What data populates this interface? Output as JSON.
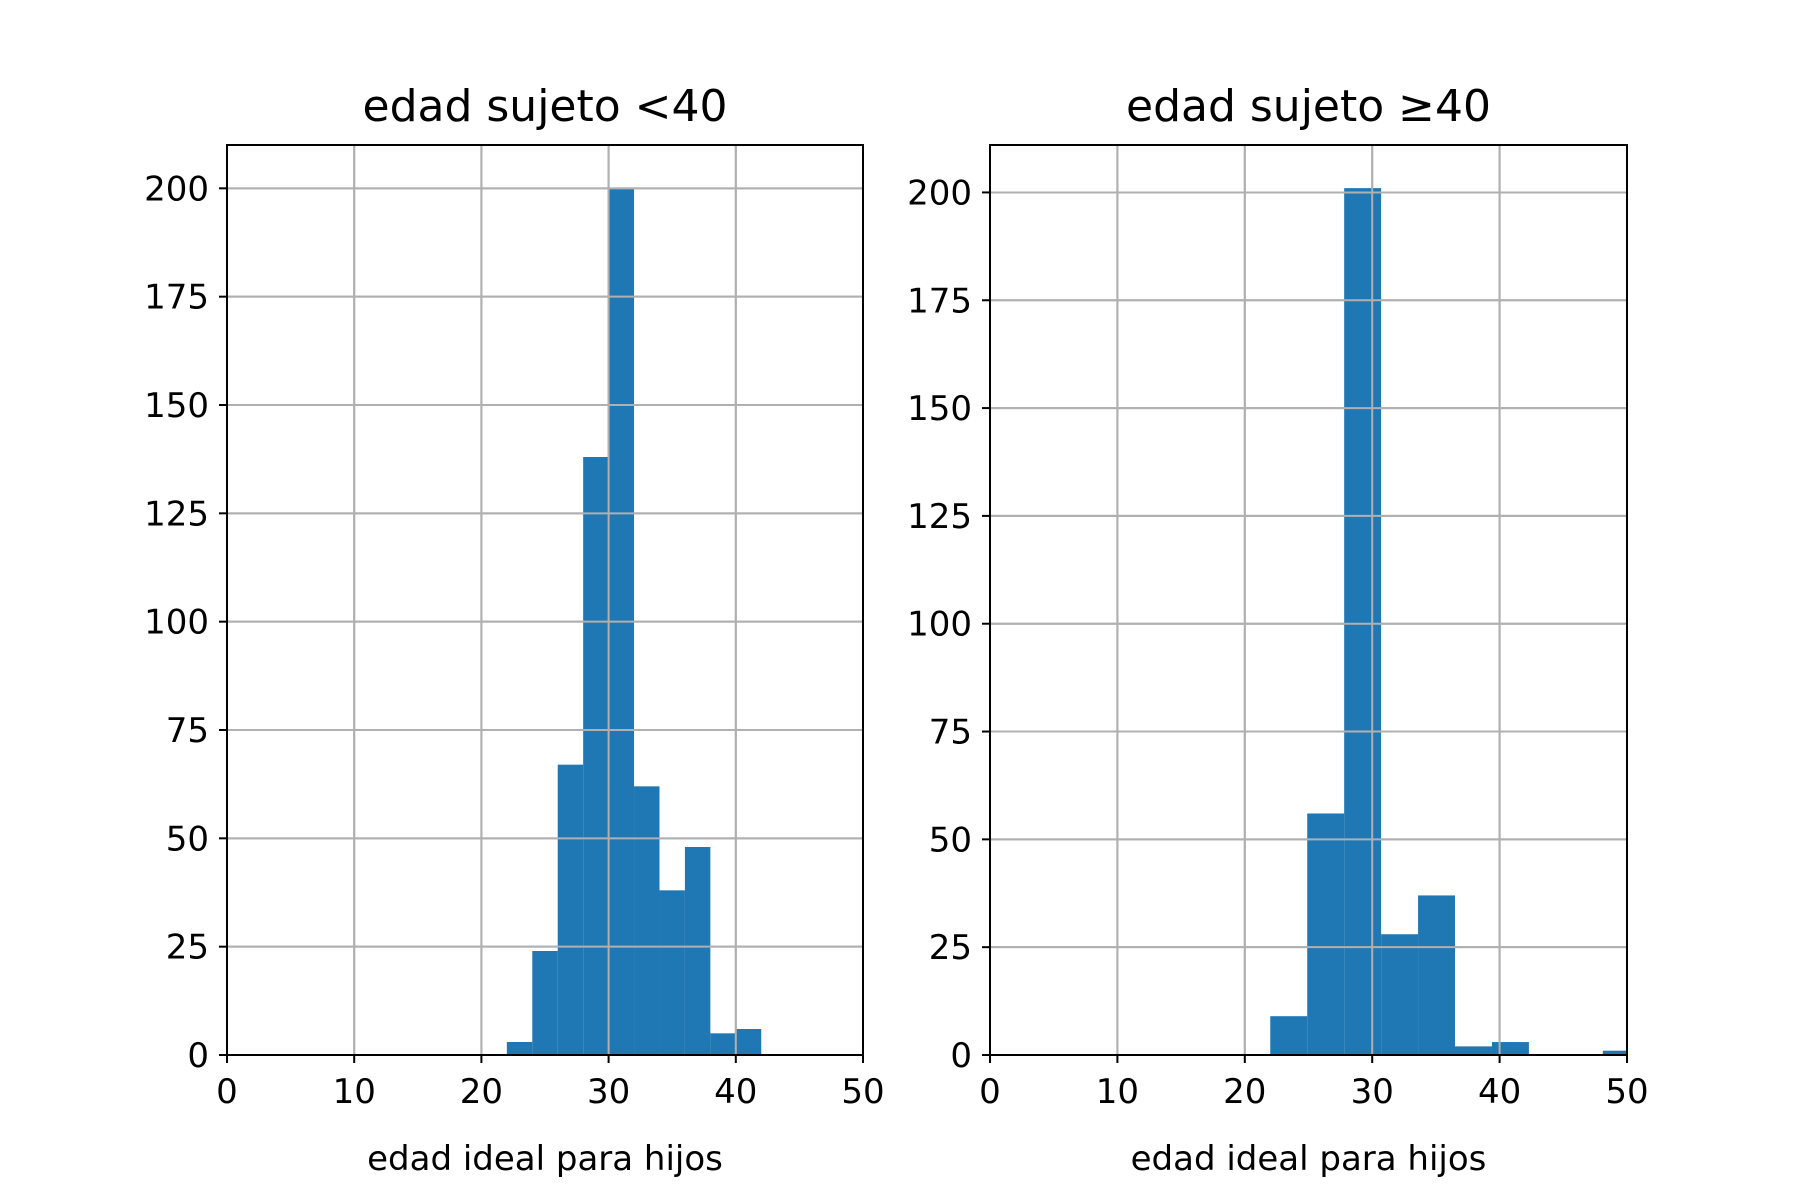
{
  "chart_data": [
    {
      "type": "bar",
      "title": "edad sujeto <40",
      "xlabel": "edad ideal para hijos",
      "ylabel": "",
      "xlim": [
        0,
        50
      ],
      "ylim": [
        0,
        210
      ],
      "xticks": [
        "0",
        "10",
        "20",
        "30",
        "40",
        "50"
      ],
      "yticks": [
        "0",
        "25",
        "50",
        "75",
        "100",
        "125",
        "150",
        "175",
        "200"
      ],
      "grid": true,
      "color": "#1f77b4",
      "bins": [
        {
          "x0": 22,
          "x1": 24,
          "count": 3
        },
        {
          "x0": 24,
          "x1": 26,
          "count": 24
        },
        {
          "x0": 26,
          "x1": 28,
          "count": 67
        },
        {
          "x0": 28,
          "x1": 30,
          "count": 138
        },
        {
          "x0": 30,
          "x1": 32,
          "count": 200
        },
        {
          "x0": 32,
          "x1": 34,
          "count": 62
        },
        {
          "x0": 34,
          "x1": 36,
          "count": 38
        },
        {
          "x0": 36,
          "x1": 38,
          "count": 48
        },
        {
          "x0": 38,
          "x1": 40,
          "count": 5
        },
        {
          "x0": 40,
          "x1": 42,
          "count": 6
        }
      ]
    },
    {
      "type": "bar",
      "title": "edad sujeto ≥40",
      "xlabel": "edad ideal para hijos",
      "ylabel": "",
      "xlim": [
        0,
        50
      ],
      "ylim": [
        0,
        211
      ],
      "xticks": [
        "0",
        "10",
        "20",
        "30",
        "40",
        "50"
      ],
      "yticks": [
        "0",
        "25",
        "50",
        "75",
        "100",
        "125",
        "150",
        "175",
        "200"
      ],
      "grid": true,
      "color": "#1f77b4",
      "bins": [
        {
          "x0": 22.0,
          "x1": 24.9,
          "count": 9
        },
        {
          "x0": 24.9,
          "x1": 27.8,
          "count": 56
        },
        {
          "x0": 27.8,
          "x1": 30.7,
          "count": 201
        },
        {
          "x0": 30.7,
          "x1": 33.6,
          "count": 28
        },
        {
          "x0": 33.6,
          "x1": 36.5,
          "count": 37
        },
        {
          "x0": 36.5,
          "x1": 39.4,
          "count": 2
        },
        {
          "x0": 39.4,
          "x1": 42.3,
          "count": 3
        },
        {
          "x0": 42.3,
          "x1": 45.2,
          "count": 0
        },
        {
          "x0": 45.2,
          "x1": 48.1,
          "count": 0
        },
        {
          "x0": 48.1,
          "x1": 51.0,
          "count": 1
        }
      ]
    }
  ]
}
